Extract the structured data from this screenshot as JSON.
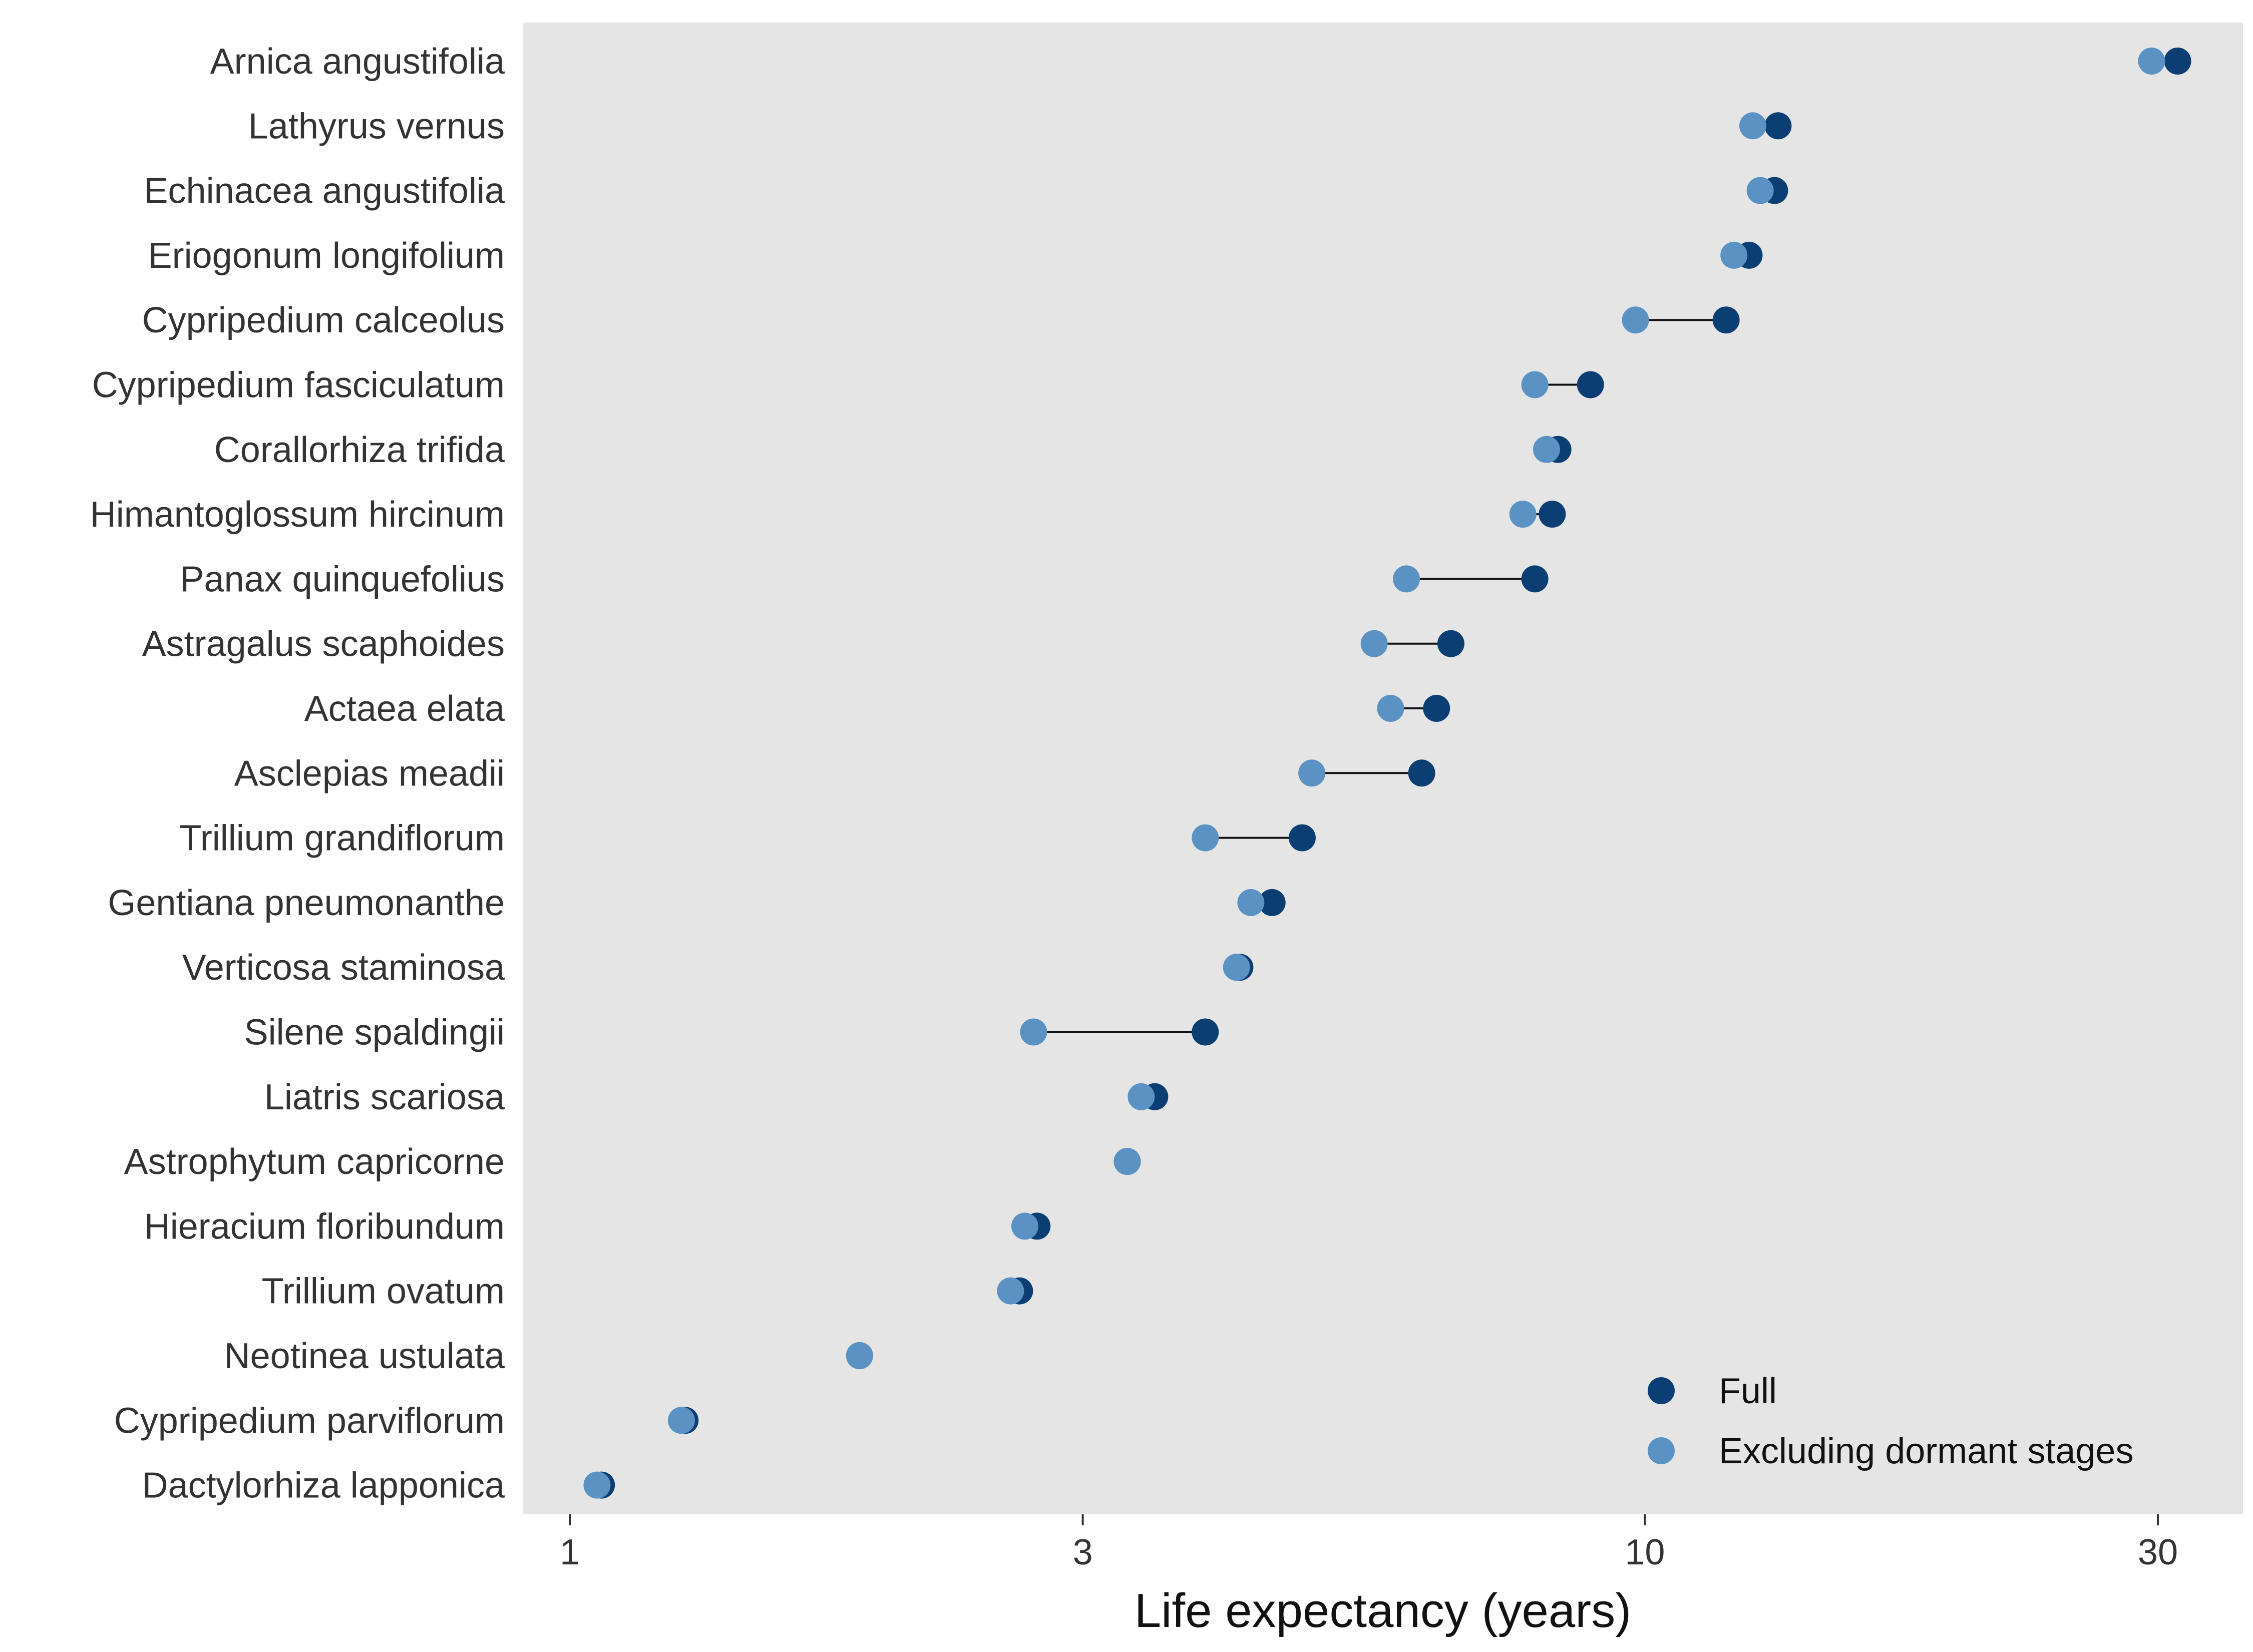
{
  "chart_data": {
    "type": "scatter",
    "subtype": "dumbbell",
    "xlabel": "Life expectancy (years)",
    "x_scale": "log",
    "xlim": [
      0.905,
      36.0
    ],
    "xticks": [
      1,
      3,
      10,
      30
    ],
    "xtick_labels": [
      "1",
      "3",
      "10",
      "30"
    ],
    "grid": false,
    "panel_color": "#e5e5e5",
    "legend_position": "bottom-right",
    "categories": [
      "Arnica angustifolia",
      "Lathyrus vernus",
      "Echinacea angustifolia",
      "Eriogonum longifolium",
      "Cypripedium calceolus",
      "Cypripedium fasciculatum",
      "Corallorhiza trifida",
      "Himantoglossum hircinum",
      "Panax quinquefolius",
      "Astragalus scaphoides",
      "Actaea elata",
      "Asclepias meadii",
      "Trillium grandiflorum",
      "Gentiana pneumonanthe",
      "Verticosa staminosa",
      "Silene spaldingii",
      "Liatris scariosa",
      "Astrophytum capricorne",
      "Hieracium floribundum",
      "Trillium ovatum",
      "Neotinea ustulata",
      "Cypripedium parviflorum",
      "Dactylorhiza lapponica"
    ],
    "series": [
      {
        "name": "Full",
        "color": "#0b3f73",
        "values": [
          31.3,
          13.3,
          13.2,
          12.5,
          11.9,
          8.9,
          8.3,
          8.2,
          7.9,
          6.6,
          6.4,
          6.2,
          4.8,
          4.5,
          4.2,
          3.9,
          3.5,
          3.3,
          2.72,
          2.62,
          1.86,
          1.28,
          1.07
        ]
      },
      {
        "name": "Excluding dormant stages",
        "color": "#5b92c4",
        "values": [
          29.6,
          12.6,
          12.8,
          12.1,
          9.8,
          7.9,
          8.1,
          7.7,
          6.0,
          5.6,
          5.8,
          4.9,
          3.9,
          4.3,
          4.17,
          2.7,
          3.4,
          3.3,
          2.65,
          2.57,
          1.86,
          1.27,
          1.06
        ]
      }
    ]
  }
}
